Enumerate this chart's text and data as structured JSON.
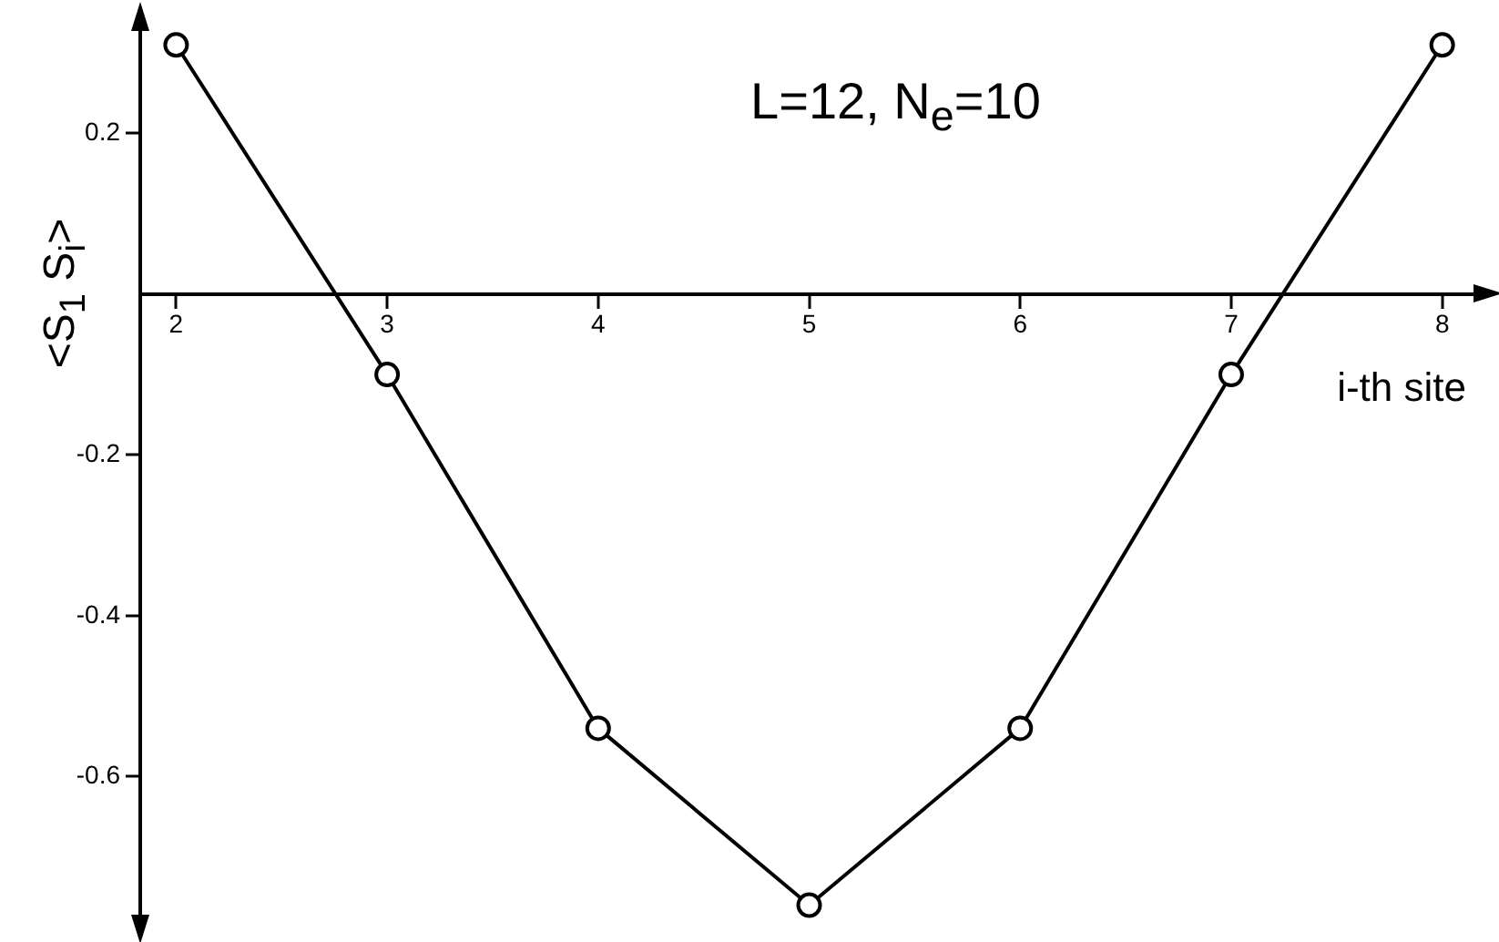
{
  "chart_data": {
    "type": "line",
    "xlabel": "i-th site",
    "ylabel": "<S$_{1}$ S$_{i}$>",
    "annotations": [
      "L=12, N$_{e}$=10"
    ],
    "x": [
      2,
      3,
      4,
      5,
      6,
      7,
      8
    ],
    "series": [
      {
        "color": "#000000",
        "values": [
          0.31,
          -0.1,
          -0.54,
          -0.76,
          -0.54,
          -0.1,
          0.31
        ]
      }
    ],
    "xlim": [
      1.83,
      8.2
    ],
    "ylim": [
      -0.78,
      0.34
    ],
    "xticks": [
      2,
      3,
      4,
      5,
      6,
      7,
      8
    ],
    "yticks": [
      0.2,
      -0.2,
      -0.4,
      -0.6
    ],
    "marker": "circle",
    "line_style": "solid"
  }
}
